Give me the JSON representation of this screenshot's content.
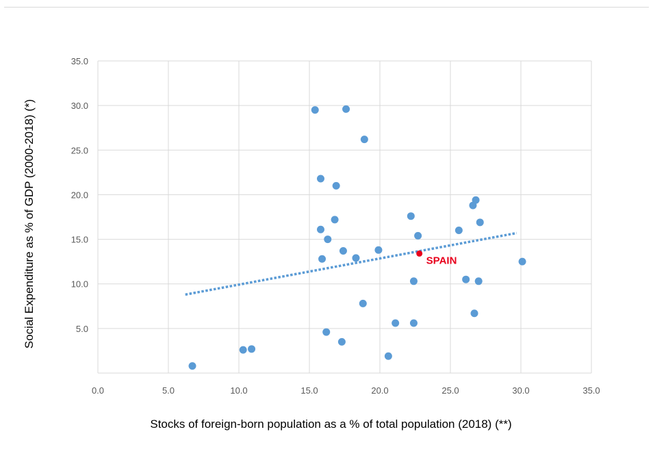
{
  "chart_data": {
    "type": "scatter",
    "xlabel": "Stocks of foreign-born population as a % of total population (2018)  (**)",
    "ylabel": "Social Expenditure as % of GDP (2000-2018)  (*)",
    "xlim": [
      0,
      35
    ],
    "ylim": [
      0,
      35
    ],
    "x_ticks": [
      0,
      5,
      10,
      15,
      20,
      25,
      30,
      35
    ],
    "y_ticks": [
      5,
      10,
      15,
      20,
      25,
      30,
      35
    ],
    "x_tick_labels": [
      "0.0",
      "5.0",
      "10.0",
      "15.0",
      "20.0",
      "25.0",
      "30.0",
      "35.0"
    ],
    "y_tick_labels": [
      "5.0",
      "10.0",
      "15.0",
      "20.0",
      "25.0",
      "30.0",
      "35.0"
    ],
    "grid": true,
    "points": [
      {
        "x": 6.7,
        "y": 0.8
      },
      {
        "x": 10.3,
        "y": 2.6
      },
      {
        "x": 10.9,
        "y": 2.7
      },
      {
        "x": 15.4,
        "y": 29.5
      },
      {
        "x": 17.6,
        "y": 29.6
      },
      {
        "x": 18.9,
        "y": 26.2
      },
      {
        "x": 15.8,
        "y": 21.8
      },
      {
        "x": 16.9,
        "y": 21.0
      },
      {
        "x": 15.8,
        "y": 16.1
      },
      {
        "x": 16.8,
        "y": 17.2
      },
      {
        "x": 16.3,
        "y": 15.0
      },
      {
        "x": 15.9,
        "y": 12.8
      },
      {
        "x": 17.4,
        "y": 13.7
      },
      {
        "x": 18.3,
        "y": 12.9
      },
      {
        "x": 19.9,
        "y": 13.8
      },
      {
        "x": 22.2,
        "y": 17.6
      },
      {
        "x": 22.7,
        "y": 15.4
      },
      {
        "x": 22.4,
        "y": 10.3
      },
      {
        "x": 18.8,
        "y": 7.8
      },
      {
        "x": 21.1,
        "y": 5.6
      },
      {
        "x": 22.4,
        "y": 5.6
      },
      {
        "x": 16.2,
        "y": 4.6
      },
      {
        "x": 17.3,
        "y": 3.5
      },
      {
        "x": 20.6,
        "y": 1.9
      },
      {
        "x": 25.6,
        "y": 16.0
      },
      {
        "x": 26.6,
        "y": 18.8
      },
      {
        "x": 26.8,
        "y": 19.4
      },
      {
        "x": 27.1,
        "y": 16.9
      },
      {
        "x": 26.1,
        "y": 10.5
      },
      {
        "x": 27.0,
        "y": 10.3
      },
      {
        "x": 26.7,
        "y": 6.7
      },
      {
        "x": 30.1,
        "y": 12.5
      }
    ],
    "highlight": {
      "label": "SPAIN",
      "x": 22.8,
      "y": 13.4,
      "color": "#e8001c"
    },
    "trendline": {
      "x": [
        6.2,
        29.7
      ],
      "y": [
        8.8,
        15.7
      ],
      "style": "dotted"
    },
    "colors": {
      "marker": "#5b9bd5",
      "trendline": "#5b9bd5",
      "grid": "#d9d9d9",
      "tick_text": "#595959"
    }
  }
}
